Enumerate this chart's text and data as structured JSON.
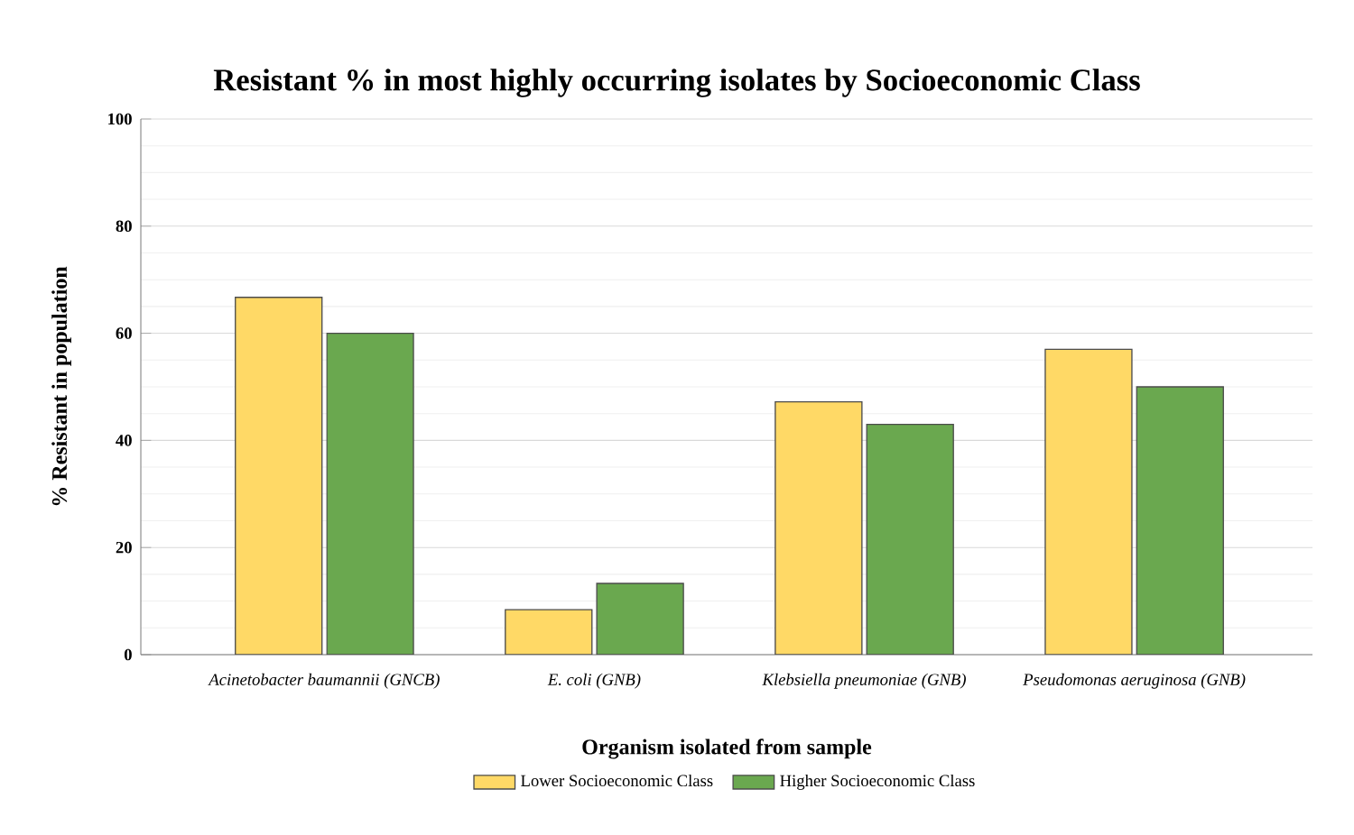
{
  "chart_data": {
    "type": "bar",
    "title": "Resistant % in most highly occurring isolates by Socioeconomic Class",
    "xlabel": "Organism isolated from sample",
    "ylabel": "% Resistant in population",
    "categories": [
      "*Acinetobacter baumannii (GNCB)*",
      "*E. coli (GNB)*",
      "*Klebsiella pneumoniae (GNB)*",
      "*Pseudomonas aeruginosa (GNB)*"
    ],
    "series": [
      {
        "name": "Lower Socioeconomic Class",
        "color": "#ffd966",
        "values": [
          66.7,
          8.4,
          47.2,
          57.0
        ]
      },
      {
        "name": "Higher Socioeconomic Class",
        "color": "#6aa84f",
        "values": [
          60.0,
          13.3,
          43.0,
          50.0
        ]
      }
    ],
    "ylim": [
      0,
      100
    ],
    "yticks": [
      0,
      20,
      40,
      60,
      80,
      100
    ],
    "grid": "y",
    "legend": "bottom"
  }
}
